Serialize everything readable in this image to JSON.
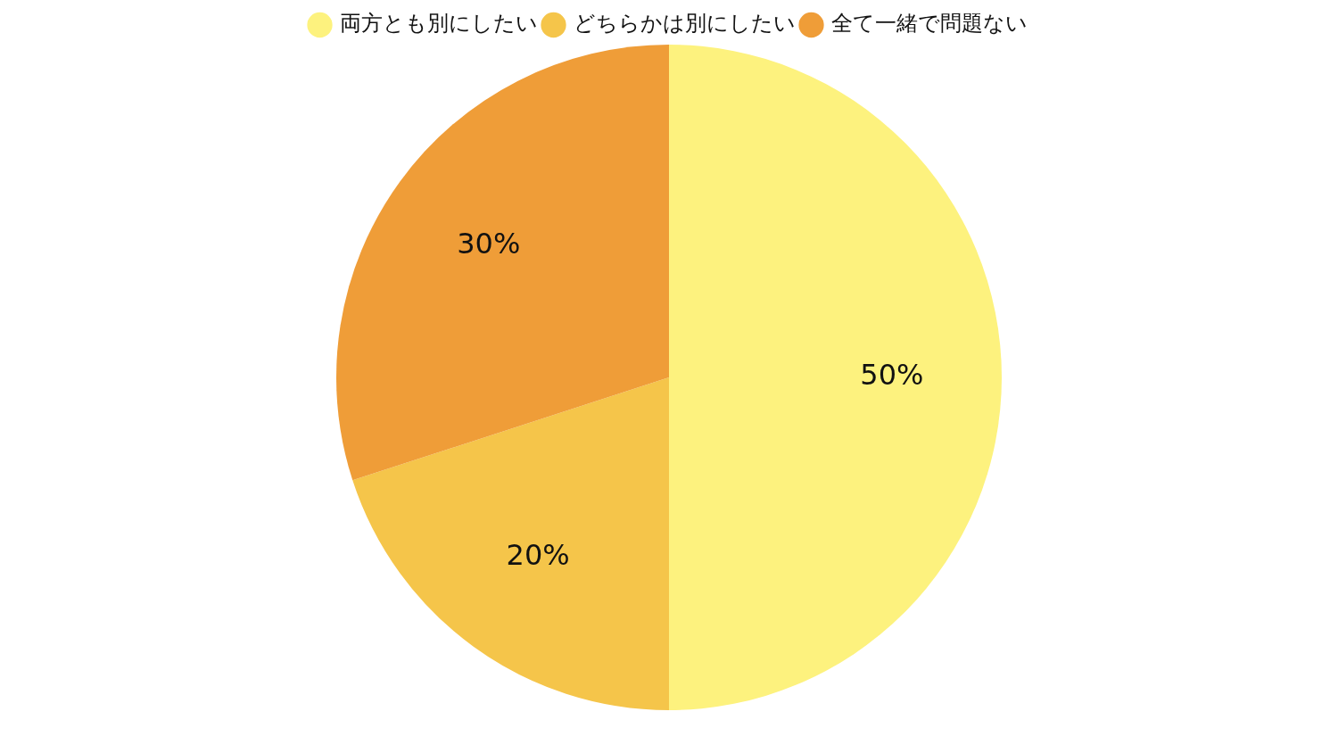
{
  "chart_data": {
    "type": "pie",
    "categories": [
      "両方とも別にしたい",
      "どちらかは別にしたい",
      "全て一緒で問題ない"
    ],
    "values": [
      50,
      20,
      30
    ],
    "colors": [
      "#fdf27e",
      "#f5c54a",
      "#ef9d38"
    ],
    "value_labels": [
      "50%",
      "20%",
      "30%"
    ],
    "legend": "top"
  }
}
